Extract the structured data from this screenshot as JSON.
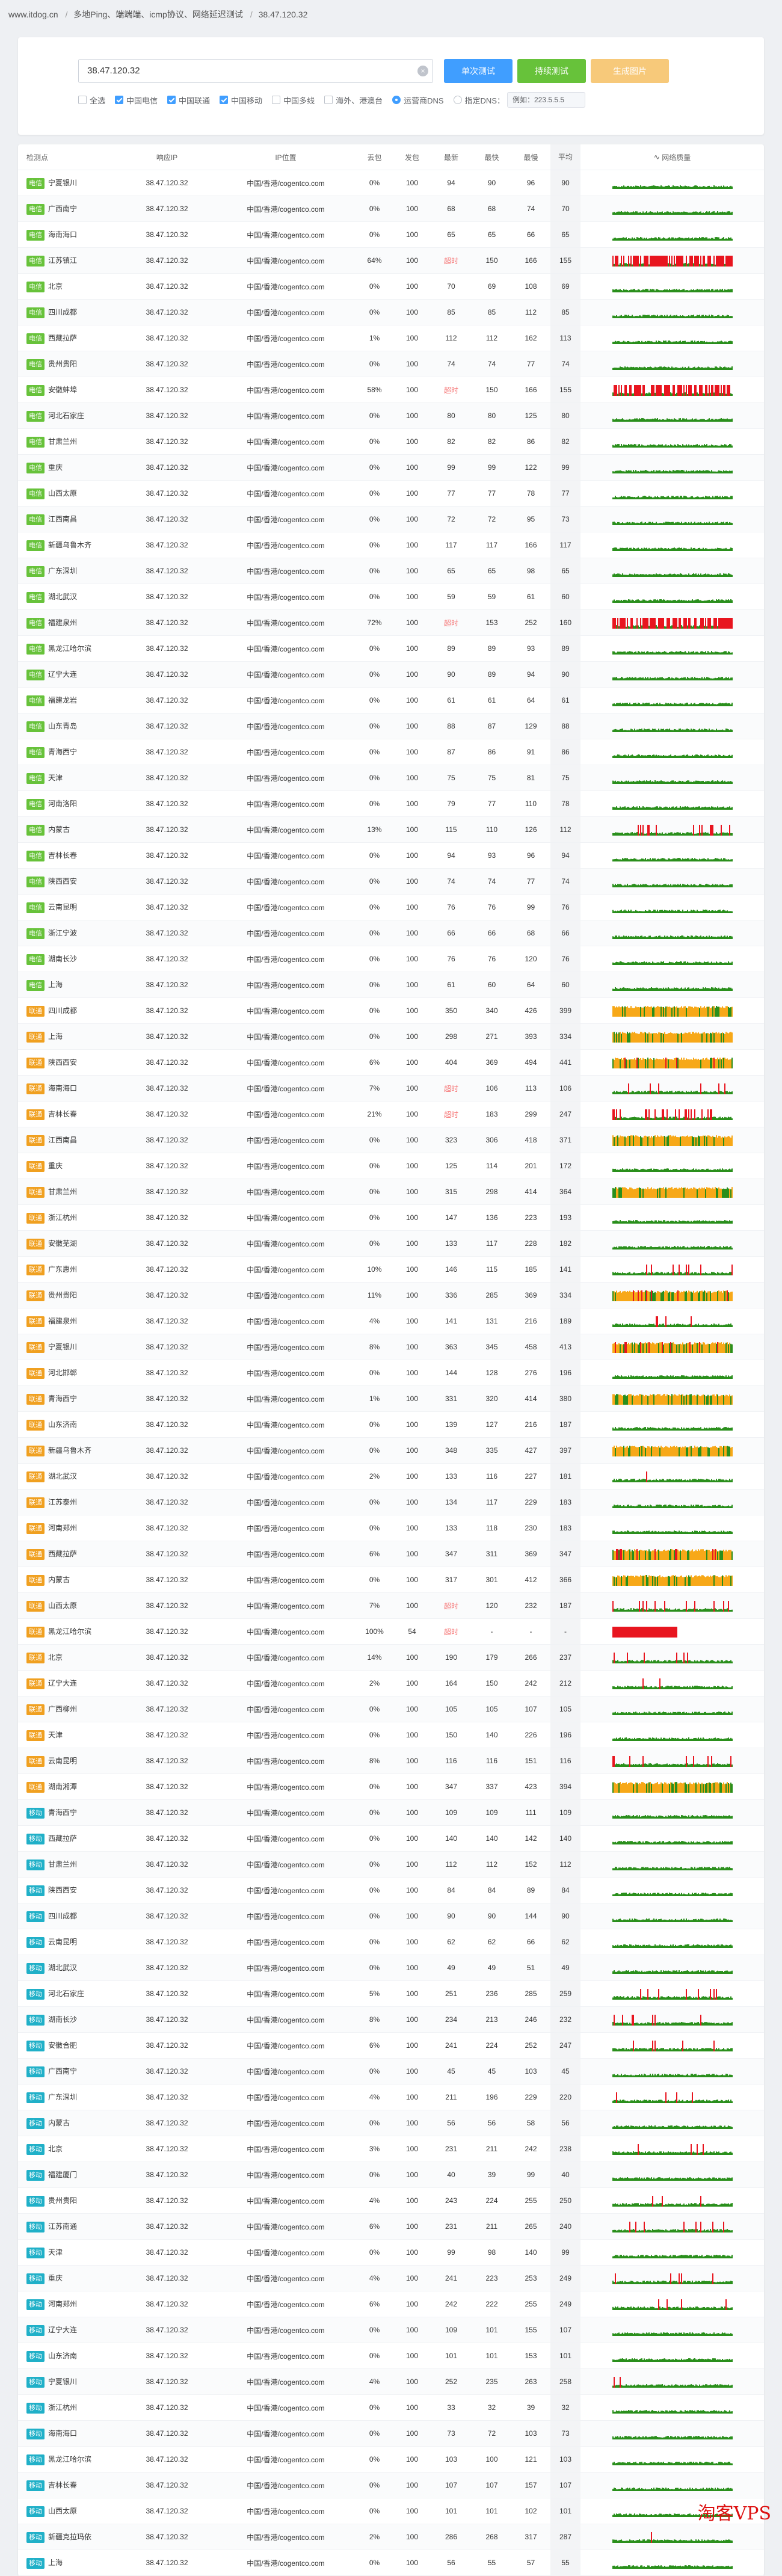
{
  "breadcrumb": [
    "www.itdog.cn",
    "多地Ping、端端端、icmp协议、网络延迟测试",
    "38.47.120.32"
  ],
  "search": {
    "value": "38.47.120.32"
  },
  "buttons": {
    "single": "单次测试",
    "continuous": "持续测试",
    "generate": "生成图片"
  },
  "options": {
    "checkboxes": [
      {
        "label": "全选",
        "checked": false
      },
      {
        "label": "中国电信",
        "checked": true
      },
      {
        "label": "中国联通",
        "checked": true
      },
      {
        "label": "中国移动",
        "checked": true
      },
      {
        "label": "中国多线",
        "checked": false
      },
      {
        "label": "海外、港澳台",
        "checked": false
      }
    ],
    "radios": [
      {
        "label": "运营商DNS",
        "checked": true
      },
      {
        "label": "指定DNS：",
        "checked": false
      }
    ],
    "dns_value": "例如：223.5.5.5"
  },
  "columns": [
    "检测点",
    "响应IP",
    "IP位置",
    "丢包",
    "发包",
    "最新",
    "最快",
    "最慢",
    "平均",
    "网络质量"
  ],
  "colors": {
    "telecom": "#67c23a",
    "unicom": "#f0a020",
    "mobile": "#20b0c8",
    "good": "#2a8f1c",
    "warn": "#f7a818",
    "bad": "#e8151f"
  },
  "rows": [
    [
      "电信",
      "宁夏银川",
      "38.47.120.32",
      "中国/香港/cogentco.com",
      "0%",
      "100",
      "94",
      "90",
      "96",
      "90"
    ],
    [
      "电信",
      "广西南宁",
      "38.47.120.32",
      "中国/香港/cogentco.com",
      "0%",
      "100",
      "68",
      "68",
      "74",
      "70"
    ],
    [
      "电信",
      "海南海口",
      "38.47.120.32",
      "中国/香港/cogentco.com",
      "0%",
      "100",
      "65",
      "65",
      "66",
      "65"
    ],
    [
      "电信",
      "江苏镇江",
      "38.47.120.32",
      "中国/香港/cogentco.com",
      "64%",
      "100",
      "超时",
      "150",
      "166",
      "155"
    ],
    [
      "电信",
      "北京",
      "38.47.120.32",
      "中国/香港/cogentco.com",
      "0%",
      "100",
      "70",
      "69",
      "108",
      "69"
    ],
    [
      "电信",
      "四川成都",
      "38.47.120.32",
      "中国/香港/cogentco.com",
      "0%",
      "100",
      "85",
      "85",
      "112",
      "85"
    ],
    [
      "电信",
      "西藏拉萨",
      "38.47.120.32",
      "中国/香港/cogentco.com",
      "1%",
      "100",
      "112",
      "112",
      "162",
      "113"
    ],
    [
      "电信",
      "贵州贵阳",
      "38.47.120.32",
      "中国/香港/cogentco.com",
      "0%",
      "100",
      "74",
      "74",
      "77",
      "74"
    ],
    [
      "电信",
      "安徽蚌埠",
      "38.47.120.32",
      "中国/香港/cogentco.com",
      "58%",
      "100",
      "超时",
      "150",
      "166",
      "155"
    ],
    [
      "电信",
      "河北石家庄",
      "38.47.120.32",
      "中国/香港/cogentco.com",
      "0%",
      "100",
      "80",
      "80",
      "125",
      "80"
    ],
    [
      "电信",
      "甘肃兰州",
      "38.47.120.32",
      "中国/香港/cogentco.com",
      "0%",
      "100",
      "82",
      "82",
      "86",
      "82"
    ],
    [
      "电信",
      "重庆",
      "38.47.120.32",
      "中国/香港/cogentco.com",
      "0%",
      "100",
      "99",
      "99",
      "122",
      "99"
    ],
    [
      "电信",
      "山西太原",
      "38.47.120.32",
      "中国/香港/cogentco.com",
      "0%",
      "100",
      "77",
      "77",
      "78",
      "77"
    ],
    [
      "电信",
      "江西南昌",
      "38.47.120.32",
      "中国/香港/cogentco.com",
      "0%",
      "100",
      "72",
      "72",
      "95",
      "73"
    ],
    [
      "电信",
      "新疆乌鲁木齐",
      "38.47.120.32",
      "中国/香港/cogentco.com",
      "0%",
      "100",
      "117",
      "117",
      "166",
      "117"
    ],
    [
      "电信",
      "广东深圳",
      "38.47.120.32",
      "中国/香港/cogentco.com",
      "0%",
      "100",
      "65",
      "65",
      "98",
      "65"
    ],
    [
      "电信",
      "湖北武汉",
      "38.47.120.32",
      "中国/香港/cogentco.com",
      "0%",
      "100",
      "59",
      "59",
      "61",
      "60"
    ],
    [
      "电信",
      "福建泉州",
      "38.47.120.32",
      "中国/香港/cogentco.com",
      "72%",
      "100",
      "超时",
      "153",
      "252",
      "160"
    ],
    [
      "电信",
      "黑龙江哈尔滨",
      "38.47.120.32",
      "中国/香港/cogentco.com",
      "0%",
      "100",
      "89",
      "89",
      "93",
      "89"
    ],
    [
      "电信",
      "辽宁大连",
      "38.47.120.32",
      "中国/香港/cogentco.com",
      "0%",
      "100",
      "90",
      "89",
      "94",
      "90"
    ],
    [
      "电信",
      "福建龙岩",
      "38.47.120.32",
      "中国/香港/cogentco.com",
      "0%",
      "100",
      "61",
      "61",
      "64",
      "61"
    ],
    [
      "电信",
      "山东青岛",
      "38.47.120.32",
      "中国/香港/cogentco.com",
      "0%",
      "100",
      "88",
      "87",
      "129",
      "88"
    ],
    [
      "电信",
      "青海西宁",
      "38.47.120.32",
      "中国/香港/cogentco.com",
      "0%",
      "100",
      "87",
      "86",
      "91",
      "86"
    ],
    [
      "电信",
      "天津",
      "38.47.120.32",
      "中国/香港/cogentco.com",
      "0%",
      "100",
      "75",
      "75",
      "81",
      "75"
    ],
    [
      "电信",
      "河南洛阳",
      "38.47.120.32",
      "中国/香港/cogentco.com",
      "0%",
      "100",
      "79",
      "77",
      "110",
      "78"
    ],
    [
      "电信",
      "内蒙古",
      "38.47.120.32",
      "中国/香港/cogentco.com",
      "13%",
      "100",
      "115",
      "110",
      "126",
      "112"
    ],
    [
      "电信",
      "吉林长春",
      "38.47.120.32",
      "中国/香港/cogentco.com",
      "0%",
      "100",
      "94",
      "93",
      "96",
      "94"
    ],
    [
      "电信",
      "陕西西安",
      "38.47.120.32",
      "中国/香港/cogentco.com",
      "0%",
      "100",
      "74",
      "74",
      "77",
      "74"
    ],
    [
      "电信",
      "云南昆明",
      "38.47.120.32",
      "中国/香港/cogentco.com",
      "0%",
      "100",
      "76",
      "76",
      "99",
      "76"
    ],
    [
      "电信",
      "浙江宁波",
      "38.47.120.32",
      "中国/香港/cogentco.com",
      "0%",
      "100",
      "66",
      "66",
      "68",
      "66"
    ],
    [
      "电信",
      "湖南长沙",
      "38.47.120.32",
      "中国/香港/cogentco.com",
      "0%",
      "100",
      "76",
      "76",
      "120",
      "76"
    ],
    [
      "电信",
      "上海",
      "38.47.120.32",
      "中国/香港/cogentco.com",
      "0%",
      "100",
      "61",
      "60",
      "64",
      "60"
    ],
    [
      "联通",
      "四川成都",
      "38.47.120.32",
      "中国/香港/cogentco.com",
      "0%",
      "100",
      "350",
      "340",
      "426",
      "399"
    ],
    [
      "联通",
      "上海",
      "38.47.120.32",
      "中国/香港/cogentco.com",
      "0%",
      "100",
      "298",
      "271",
      "393",
      "334"
    ],
    [
      "联通",
      "陕西西安",
      "38.47.120.32",
      "中国/香港/cogentco.com",
      "6%",
      "100",
      "404",
      "369",
      "494",
      "441"
    ],
    [
      "联通",
      "海南海口",
      "38.47.120.32",
      "中国/香港/cogentco.com",
      "7%",
      "100",
      "超时",
      "106",
      "113",
      "106"
    ],
    [
      "联通",
      "吉林长春",
      "38.47.120.32",
      "中国/香港/cogentco.com",
      "21%",
      "100",
      "超时",
      "183",
      "299",
      "247"
    ],
    [
      "联通",
      "江西南昌",
      "38.47.120.32",
      "中国/香港/cogentco.com",
      "0%",
      "100",
      "323",
      "306",
      "418",
      "371"
    ],
    [
      "联通",
      "重庆",
      "38.47.120.32",
      "中国/香港/cogentco.com",
      "0%",
      "100",
      "125",
      "114",
      "201",
      "172"
    ],
    [
      "联通",
      "甘肃兰州",
      "38.47.120.32",
      "中国/香港/cogentco.com",
      "0%",
      "100",
      "315",
      "298",
      "414",
      "364"
    ],
    [
      "联通",
      "浙江杭州",
      "38.47.120.32",
      "中国/香港/cogentco.com",
      "0%",
      "100",
      "147",
      "136",
      "223",
      "193"
    ],
    [
      "联通",
      "安徽芜湖",
      "38.47.120.32",
      "中国/香港/cogentco.com",
      "0%",
      "100",
      "133",
      "117",
      "228",
      "182"
    ],
    [
      "联通",
      "广东惠州",
      "38.47.120.32",
      "中国/香港/cogentco.com",
      "10%",
      "100",
      "146",
      "115",
      "185",
      "141"
    ],
    [
      "联通",
      "贵州贵阳",
      "38.47.120.32",
      "中国/香港/cogentco.com",
      "11%",
      "100",
      "336",
      "285",
      "369",
      "334"
    ],
    [
      "联通",
      "福建泉州",
      "38.47.120.32",
      "中国/香港/cogentco.com",
      "4%",
      "100",
      "141",
      "131",
      "216",
      "189"
    ],
    [
      "联通",
      "宁夏银川",
      "38.47.120.32",
      "中国/香港/cogentco.com",
      "8%",
      "100",
      "363",
      "345",
      "458",
      "413"
    ],
    [
      "联通",
      "河北邯郸",
      "38.47.120.32",
      "中国/香港/cogentco.com",
      "0%",
      "100",
      "144",
      "128",
      "276",
      "196"
    ],
    [
      "联通",
      "青海西宁",
      "38.47.120.32",
      "中国/香港/cogentco.com",
      "1%",
      "100",
      "331",
      "320",
      "414",
      "380"
    ],
    [
      "联通",
      "山东济南",
      "38.47.120.32",
      "中国/香港/cogentco.com",
      "0%",
      "100",
      "139",
      "127",
      "216",
      "187"
    ],
    [
      "联通",
      "新疆乌鲁木齐",
      "38.47.120.32",
      "中国/香港/cogentco.com",
      "0%",
      "100",
      "348",
      "335",
      "427",
      "397"
    ],
    [
      "联通",
      "湖北武汉",
      "38.47.120.32",
      "中国/香港/cogentco.com",
      "2%",
      "100",
      "133",
      "116",
      "227",
      "181"
    ],
    [
      "联通",
      "江苏泰州",
      "38.47.120.32",
      "中国/香港/cogentco.com",
      "0%",
      "100",
      "134",
      "117",
      "229",
      "183"
    ],
    [
      "联通",
      "河南郑州",
      "38.47.120.32",
      "中国/香港/cogentco.com",
      "0%",
      "100",
      "133",
      "118",
      "230",
      "183"
    ],
    [
      "联通",
      "西藏拉萨",
      "38.47.120.32",
      "中国/香港/cogentco.com",
      "6%",
      "100",
      "347",
      "311",
      "369",
      "347"
    ],
    [
      "联通",
      "内蒙古",
      "38.47.120.32",
      "中国/香港/cogentco.com",
      "0%",
      "100",
      "317",
      "301",
      "412",
      "366"
    ],
    [
      "联通",
      "山西太原",
      "38.47.120.32",
      "中国/香港/cogentco.com",
      "7%",
      "100",
      "超时",
      "120",
      "232",
      "187"
    ],
    [
      "联通",
      "黑龙江哈尔滨",
      "38.47.120.32",
      "中国/香港/cogentco.com",
      "100%",
      "54",
      "超时",
      "-",
      "-",
      "-"
    ],
    [
      "联通",
      "北京",
      "38.47.120.32",
      "中国/香港/cogentco.com",
      "14%",
      "100",
      "190",
      "179",
      "266",
      "237"
    ],
    [
      "联通",
      "辽宁大连",
      "38.47.120.32",
      "中国/香港/cogentco.com",
      "2%",
      "100",
      "164",
      "150",
      "242",
      "212"
    ],
    [
      "联通",
      "广西柳州",
      "38.47.120.32",
      "中国/香港/cogentco.com",
      "0%",
      "100",
      "105",
      "105",
      "107",
      "105"
    ],
    [
      "联通",
      "天津",
      "38.47.120.32",
      "中国/香港/cogentco.com",
      "0%",
      "100",
      "150",
      "140",
      "226",
      "196"
    ],
    [
      "联通",
      "云南昆明",
      "38.47.120.32",
      "中国/香港/cogentco.com",
      "8%",
      "100",
      "116",
      "116",
      "151",
      "116"
    ],
    [
      "联通",
      "湖南湘潭",
      "38.47.120.32",
      "中国/香港/cogentco.com",
      "0%",
      "100",
      "347",
      "337",
      "423",
      "394"
    ],
    [
      "移动",
      "青海西宁",
      "38.47.120.32",
      "中国/香港/cogentco.com",
      "0%",
      "100",
      "109",
      "109",
      "111",
      "109"
    ],
    [
      "移动",
      "西藏拉萨",
      "38.47.120.32",
      "中国/香港/cogentco.com",
      "0%",
      "100",
      "140",
      "140",
      "142",
      "140"
    ],
    [
      "移动",
      "甘肃兰州",
      "38.47.120.32",
      "中国/香港/cogentco.com",
      "0%",
      "100",
      "112",
      "112",
      "152",
      "112"
    ],
    [
      "移动",
      "陕西西安",
      "38.47.120.32",
      "中国/香港/cogentco.com",
      "0%",
      "100",
      "84",
      "84",
      "89",
      "84"
    ],
    [
      "移动",
      "四川成都",
      "38.47.120.32",
      "中国/香港/cogentco.com",
      "0%",
      "100",
      "90",
      "90",
      "144",
      "90"
    ],
    [
      "移动",
      "云南昆明",
      "38.47.120.32",
      "中国/香港/cogentco.com",
      "0%",
      "100",
      "62",
      "62",
      "66",
      "62"
    ],
    [
      "移动",
      "湖北武汉",
      "38.47.120.32",
      "中国/香港/cogentco.com",
      "0%",
      "100",
      "49",
      "49",
      "51",
      "49"
    ],
    [
      "移动",
      "河北石家庄",
      "38.47.120.32",
      "中国/香港/cogentco.com",
      "5%",
      "100",
      "251",
      "236",
      "285",
      "259"
    ],
    [
      "移动",
      "湖南长沙",
      "38.47.120.32",
      "中国/香港/cogentco.com",
      "8%",
      "100",
      "234",
      "213",
      "246",
      "232"
    ],
    [
      "移动",
      "安徽合肥",
      "38.47.120.32",
      "中国/香港/cogentco.com",
      "6%",
      "100",
      "241",
      "224",
      "252",
      "247"
    ],
    [
      "移动",
      "广西南宁",
      "38.47.120.32",
      "中国/香港/cogentco.com",
      "0%",
      "100",
      "45",
      "45",
      "103",
      "45"
    ],
    [
      "移动",
      "广东深圳",
      "38.47.120.32",
      "中国/香港/cogentco.com",
      "4%",
      "100",
      "211",
      "196",
      "229",
      "220"
    ],
    [
      "移动",
      "内蒙古",
      "38.47.120.32",
      "中国/香港/cogentco.com",
      "0%",
      "100",
      "56",
      "56",
      "58",
      "56"
    ],
    [
      "移动",
      "北京",
      "38.47.120.32",
      "中国/香港/cogentco.com",
      "3%",
      "100",
      "231",
      "211",
      "242",
      "238"
    ],
    [
      "移动",
      "福建厦门",
      "38.47.120.32",
      "中国/香港/cogentco.com",
      "0%",
      "100",
      "40",
      "39",
      "99",
      "40"
    ],
    [
      "移动",
      "贵州贵阳",
      "38.47.120.32",
      "中国/香港/cogentco.com",
      "4%",
      "100",
      "243",
      "224",
      "255",
      "250"
    ],
    [
      "移动",
      "江苏南通",
      "38.47.120.32",
      "中国/香港/cogentco.com",
      "6%",
      "100",
      "231",
      "211",
      "265",
      "240"
    ],
    [
      "移动",
      "天津",
      "38.47.120.32",
      "中国/香港/cogentco.com",
      "0%",
      "100",
      "99",
      "98",
      "140",
      "99"
    ],
    [
      "移动",
      "重庆",
      "38.47.120.32",
      "中国/香港/cogentco.com",
      "4%",
      "100",
      "241",
      "223",
      "253",
      "249"
    ],
    [
      "移动",
      "河南郑州",
      "38.47.120.32",
      "中国/香港/cogentco.com",
      "6%",
      "100",
      "242",
      "222",
      "255",
      "249"
    ],
    [
      "移动",
      "辽宁大连",
      "38.47.120.32",
      "中国/香港/cogentco.com",
      "0%",
      "100",
      "109",
      "101",
      "155",
      "107"
    ],
    [
      "移动",
      "山东济南",
      "38.47.120.32",
      "中国/香港/cogentco.com",
      "0%",
      "100",
      "101",
      "101",
      "153",
      "101"
    ],
    [
      "移动",
      "宁夏银川",
      "38.47.120.32",
      "中国/香港/cogentco.com",
      "4%",
      "100",
      "252",
      "235",
      "263",
      "258"
    ],
    [
      "移动",
      "浙江杭州",
      "38.47.120.32",
      "中国/香港/cogentco.com",
      "0%",
      "100",
      "33",
      "32",
      "39",
      "32"
    ],
    [
      "移动",
      "海南海口",
      "38.47.120.32",
      "中国/香港/cogentco.com",
      "0%",
      "100",
      "73",
      "72",
      "103",
      "73"
    ],
    [
      "移动",
      "黑龙江哈尔滨",
      "38.47.120.32",
      "中国/香港/cogentco.com",
      "0%",
      "100",
      "103",
      "100",
      "121",
      "103"
    ],
    [
      "移动",
      "吉林长春",
      "38.47.120.32",
      "中国/香港/cogentco.com",
      "0%",
      "100",
      "107",
      "107",
      "157",
      "107"
    ],
    [
      "移动",
      "山西太原",
      "38.47.120.32",
      "中国/香港/cogentco.com",
      "0%",
      "100",
      "101",
      "101",
      "102",
      "101"
    ],
    [
      "移动",
      "新疆克拉玛依",
      "38.47.120.32",
      "中国/香港/cogentco.com",
      "2%",
      "100",
      "286",
      "268",
      "317",
      "287"
    ],
    [
      "移动",
      "上海",
      "38.47.120.32",
      "中国/香港/cogentco.com",
      "0%",
      "100",
      "56",
      "55",
      "57",
      "55"
    ]
  ],
  "watermark": "淘客VPS"
}
